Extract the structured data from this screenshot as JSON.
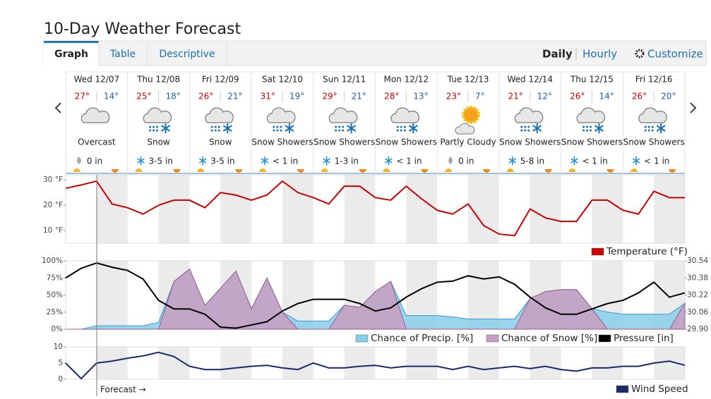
{
  "header": {
    "title": "10-Day Weather Forecast",
    "tabs": [
      "Graph",
      "Table",
      "Descriptive"
    ],
    "views": [
      "Daily",
      "Hourly"
    ],
    "customize": "Customize"
  },
  "days": [
    {
      "day": "Wed 12/07",
      "high": "27°",
      "low": "14°",
      "condition": "Overcast",
      "precip": "0 in"
    },
    {
      "day": "Thu 12/08",
      "high": "25°",
      "low": "18°",
      "condition": "Snow",
      "precip": "3-5 in"
    },
    {
      "day": "Fri 12/09",
      "high": "26°",
      "low": "21°",
      "condition": "Snow",
      "precip": "3-5 in"
    },
    {
      "day": "Sat 12/10",
      "high": "31°",
      "low": "19°",
      "condition": "Snow Showers",
      "precip": "< 1 in"
    },
    {
      "day": "Sun 12/11",
      "high": "29°",
      "low": "21°",
      "condition": "Snow Showers",
      "precip": "1-3 in"
    },
    {
      "day": "Mon 12/12",
      "high": "28°",
      "low": "13°",
      "condition": "Snow Showers",
      "precip": "< 1 in"
    },
    {
      "day": "Tue 12/13",
      "high": "23°",
      "low": "7°",
      "condition": "Partly Cloudy",
      "precip": "0 in"
    },
    {
      "day": "Wed 12/14",
      "high": "21°",
      "low": "12°",
      "condition": "Snow Showers",
      "precip": "5-8 in"
    },
    {
      "day": "Thu 12/15",
      "high": "26°",
      "low": "14°",
      "condition": "Snow Showers",
      "precip": "< 1 in"
    },
    {
      "day": "Fri 12/16",
      "high": "26°",
      "low": "20°",
      "condition": "Snow Showers",
      "precip": "< 1 in"
    }
  ],
  "forecast_marker": "Forecast →",
  "chart_data": [
    {
      "type": "line",
      "series": [
        {
          "name": "Temperature (°F)",
          "color": "#cc0000",
          "values": [
            26.7,
            28,
            29.5,
            20.5,
            19,
            16.5,
            20,
            22,
            22,
            19,
            25,
            24,
            22,
            24,
            29.5,
            25,
            23,
            20.5,
            27.5,
            27.5,
            23,
            22,
            27.5,
            22.5,
            18,
            16.5,
            20.5,
            12,
            8.6,
            8,
            18.5,
            15,
            13.6,
            13.6,
            22,
            22,
            18,
            16.5,
            25.5,
            23,
            23
          ]
        }
      ],
      "ylim": [
        5,
        32
      ],
      "yticks": [
        {
          "value": 10,
          "label": "10 °F"
        },
        {
          "value": 20,
          "label": "20 °F"
        },
        {
          "value": 30,
          "label": "30 °F"
        }
      ]
    },
    {
      "type": "area",
      "series": [
        {
          "name": "Chance of Precip. [%]",
          "color": "#87cfea",
          "values": [
            0,
            0,
            5,
            5,
            5,
            5,
            10,
            70,
            88,
            35,
            60,
            85,
            30,
            75,
            25,
            12,
            12,
            12,
            35,
            32,
            55,
            70,
            20,
            20,
            20,
            18,
            15,
            15,
            15,
            15,
            45,
            55,
            58,
            58,
            30,
            25,
            22,
            22,
            22,
            22,
            38
          ]
        },
        {
          "name": "Chance of Snow [%]",
          "color": "#c99ec0",
          "values": [
            0,
            0,
            0,
            0,
            0,
            0,
            0,
            70,
            88,
            35,
            60,
            85,
            30,
            75,
            25,
            0,
            0,
            0,
            35,
            32,
            55,
            70,
            0,
            0,
            0,
            0,
            0,
            0,
            0,
            0,
            45,
            55,
            58,
            58,
            30,
            0,
            0,
            0,
            0,
            0,
            38
          ]
        },
        {
          "name": "Pressure [in]",
          "color": "#000000",
          "type": "line",
          "axis": "y2",
          "values": [
            30.38,
            30.47,
            30.52,
            30.48,
            30.45,
            30.37,
            30.17,
            30.09,
            30.09,
            30.04,
            29.92,
            29.91,
            29.94,
            29.97,
            30.07,
            30.14,
            30.18,
            30.18,
            30.18,
            30.14,
            30.07,
            30.1,
            30.2,
            30.28,
            30.34,
            30.35,
            30.4,
            30.37,
            30.39,
            30.32,
            30.2,
            30.1,
            30.04,
            30.04,
            30.09,
            30.14,
            30.17,
            30.24,
            30.34,
            30.2,
            30.24
          ]
        }
      ],
      "ylim": [
        0,
        100
      ],
      "yticks": [
        {
          "value": 0,
          "label": "0%"
        },
        {
          "value": 25,
          "label": "25%"
        },
        {
          "value": 50,
          "label": "50%"
        },
        {
          "value": 75,
          "label": "75%"
        },
        {
          "value": 100,
          "label": "100%"
        }
      ],
      "y2lim": [
        29.9,
        30.54
      ],
      "y2ticks": [
        {
          "value": 29.9,
          "label": "29.90"
        },
        30.06,
        30.22,
        30.38,
        30.54
      ]
    },
    {
      "type": "line",
      "series": [
        {
          "name": "Wind Speed",
          "color": "#1a2a6c",
          "values": [
            5,
            0.2,
            5,
            5.6,
            6.5,
            7.2,
            8.3,
            7,
            4,
            3,
            3,
            3.5,
            4,
            4.3,
            3.5,
            3,
            5,
            3.5,
            3.5,
            4,
            4.3,
            3.5,
            4,
            4,
            4,
            3,
            4,
            3,
            3.5,
            4,
            3.3,
            4,
            3,
            2.5,
            3.5,
            3.5,
            4,
            4,
            5,
            5.6,
            4.3
          ]
        }
      ],
      "ylim": [
        0,
        10
      ],
      "yticks": [
        0,
        5,
        10
      ]
    }
  ]
}
